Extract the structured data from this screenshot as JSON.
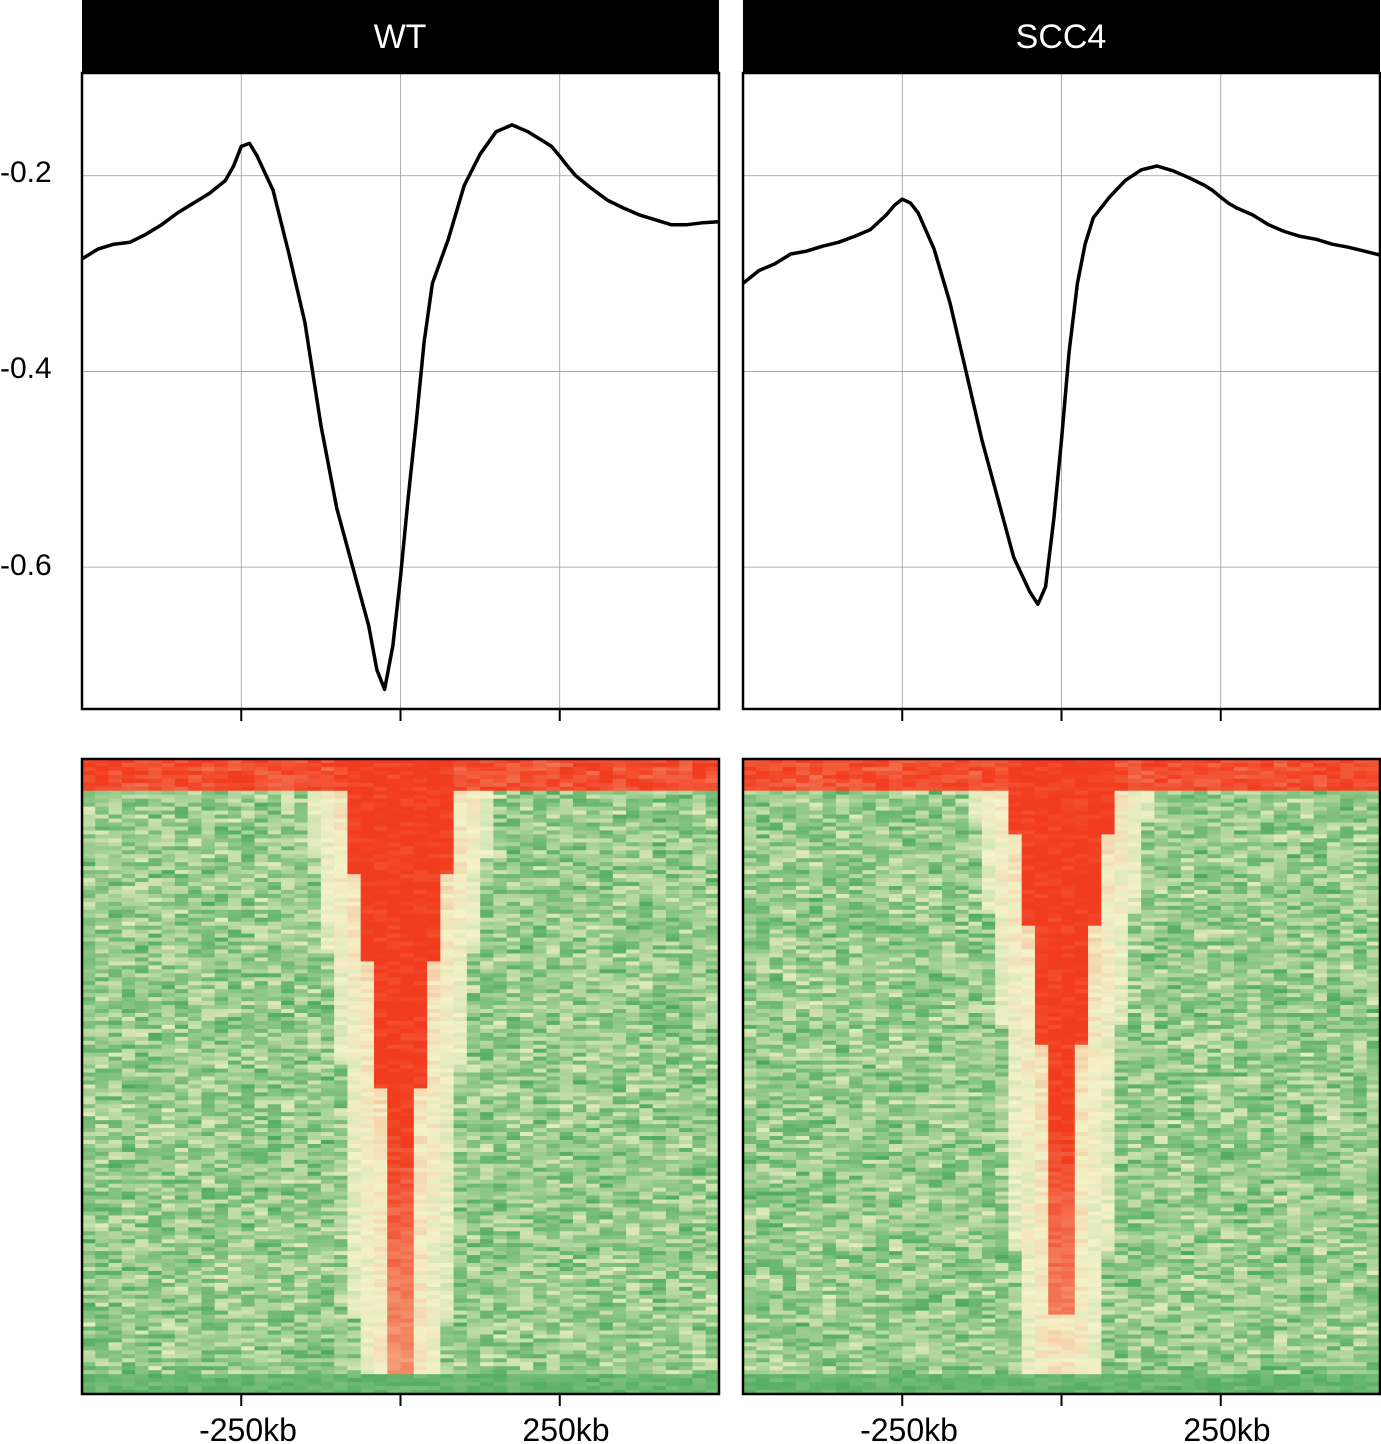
{
  "chart_data": [
    {
      "type": "line",
      "panel": "WT",
      "title": "WT",
      "xlabel": "",
      "ylabel": "",
      "x_tick_labels": [
        "-250kb",
        "250kb"
      ],
      "y_ticks": [
        -0.2,
        -0.4,
        -0.6
      ],
      "y_tick_labels": [
        "-0.2",
        "-0.4",
        "-0.6"
      ],
      "ylim": [
        -0.745,
        -0.095
      ],
      "grid": true,
      "x": [
        -500,
        -475,
        -450,
        -425,
        -400,
        -375,
        -350,
        -325,
        -300,
        -275,
        -262,
        -250,
        -237,
        -225,
        -200,
        -175,
        -150,
        -125,
        -100,
        -75,
        -50,
        -37,
        -25,
        -12,
        0,
        12,
        25,
        37,
        50,
        75,
        100,
        125,
        150,
        175,
        200,
        225,
        237,
        250,
        262,
        275,
        300,
        325,
        350,
        375,
        400,
        425,
        450,
        475,
        500
      ],
      "values": [
        -0.285,
        -0.275,
        -0.27,
        -0.268,
        -0.26,
        -0.25,
        -0.238,
        -0.228,
        -0.218,
        -0.205,
        -0.19,
        -0.17,
        -0.167,
        -0.18,
        -0.215,
        -0.28,
        -0.35,
        -0.455,
        -0.54,
        -0.6,
        -0.66,
        -0.705,
        -0.725,
        -0.68,
        -0.61,
        -0.53,
        -0.45,
        -0.37,
        -0.31,
        -0.265,
        -0.21,
        -0.178,
        -0.155,
        -0.148,
        -0.155,
        -0.165,
        -0.17,
        -0.18,
        -0.19,
        -0.2,
        -0.213,
        -0.225,
        -0.233,
        -0.24,
        -0.245,
        -0.25,
        -0.25,
        -0.248,
        -0.247
      ]
    },
    {
      "type": "line",
      "panel": "SCC4",
      "title": "SCC4",
      "xlabel": "",
      "ylabel": "",
      "x_tick_labels": [
        "-250kb",
        "250kb"
      ],
      "y_ticks": [
        -0.2,
        -0.4,
        -0.6
      ],
      "y_tick_labels": [
        "-0.2",
        "-0.4",
        "-0.6"
      ],
      "ylim": [
        -0.745,
        -0.095
      ],
      "grid": true,
      "x": [
        -500,
        -475,
        -450,
        -425,
        -400,
        -375,
        -350,
        -325,
        -300,
        -275,
        -262,
        -250,
        -237,
        -225,
        -200,
        -175,
        -150,
        -125,
        -100,
        -75,
        -50,
        -37,
        -25,
        -12,
        0,
        12,
        25,
        37,
        50,
        75,
        100,
        125,
        150,
        175,
        200,
        225,
        237,
        250,
        262,
        275,
        300,
        325,
        350,
        375,
        400,
        425,
        450,
        475,
        500
      ],
      "values": [
        -0.31,
        -0.297,
        -0.29,
        -0.28,
        -0.277,
        -0.272,
        -0.268,
        -0.262,
        -0.255,
        -0.24,
        -0.23,
        -0.224,
        -0.228,
        -0.238,
        -0.275,
        -0.33,
        -0.4,
        -0.47,
        -0.53,
        -0.59,
        -0.625,
        -0.638,
        -0.62,
        -0.55,
        -0.47,
        -0.38,
        -0.31,
        -0.27,
        -0.243,
        -0.222,
        -0.205,
        -0.194,
        -0.19,
        -0.195,
        -0.202,
        -0.21,
        -0.215,
        -0.222,
        -0.228,
        -0.233,
        -0.24,
        -0.25,
        -0.257,
        -0.262,
        -0.265,
        -0.27,
        -0.273,
        -0.277,
        -0.281
      ]
    },
    {
      "type": "heatmap",
      "panel": "WT",
      "x_tick_labels": [
        "-250kb",
        "250kb"
      ],
      "colorscale": [
        "#2e9e49",
        "#f4f2c8",
        "#f23c1f"
      ],
      "rows_ordered_by_center_value": true,
      "center_red_halfwidth_top_to_bottom_kb": [
        95,
        70,
        40,
        25,
        15,
        10
      ],
      "mean_center_value": -0.725
    },
    {
      "type": "heatmap",
      "panel": "SCC4",
      "x_tick_labels": [
        "-250kb",
        "250kb"
      ],
      "colorscale": [
        "#2e9e49",
        "#f4f2c8",
        "#f23c1f"
      ],
      "rows_ordered_by_center_value": true,
      "center_red_halfwidth_top_to_bottom_kb": [
        90,
        60,
        35,
        20,
        12,
        8
      ],
      "mean_center_value": -0.638
    }
  ],
  "colors": {
    "header_bg": "#000000",
    "header_text": "#ffffff",
    "line": "#000000",
    "grid": "#999999",
    "heat_low": "#2e9e49",
    "heat_mid": "#f4f2c8",
    "heat_high": "#f23c1f"
  }
}
